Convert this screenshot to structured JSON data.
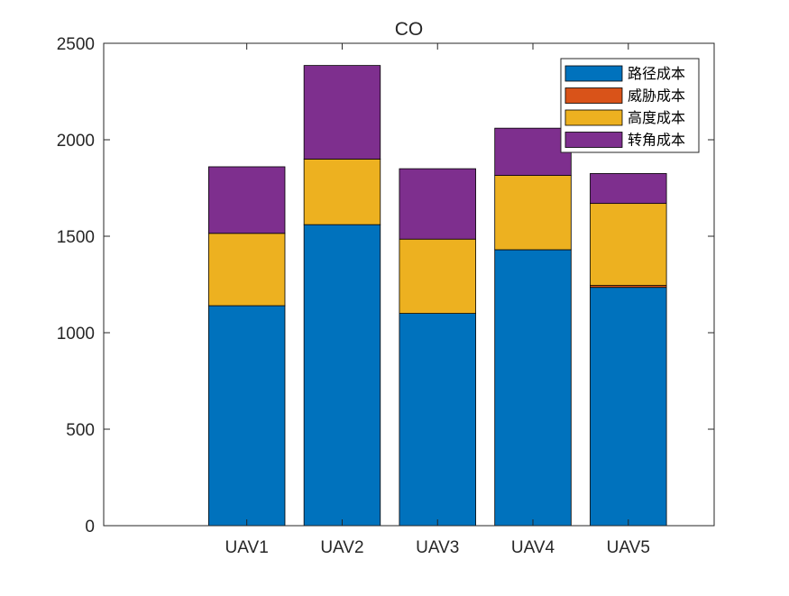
{
  "chart_data": {
    "type": "bar",
    "stacked": true,
    "title": "CO",
    "xlabel": "",
    "ylabel": "",
    "categories": [
      "UAV1",
      "UAV2",
      "UAV3",
      "UAV4",
      "UAV5"
    ],
    "series": [
      {
        "name": "路径成本",
        "color": "#0072BD",
        "values": [
          1140,
          1560,
          1100,
          1430,
          1235
        ]
      },
      {
        "name": "威胁成本",
        "color": "#D95319",
        "values": [
          0,
          0,
          0,
          0,
          10
        ]
      },
      {
        "name": "高度成本",
        "color": "#EDB120",
        "values": [
          375,
          340,
          385,
          385,
          425
        ]
      },
      {
        "name": "转角成本",
        "color": "#7E2F8E",
        "values": [
          345,
          485,
          365,
          245,
          155
        ]
      }
    ],
    "ylim": [
      0,
      2500
    ],
    "yticks": [
      0,
      500,
      1000,
      1500,
      2000,
      2500
    ],
    "xlim": [
      -0.5,
      5.9
    ],
    "grid": false,
    "legend_position": "top-right"
  }
}
